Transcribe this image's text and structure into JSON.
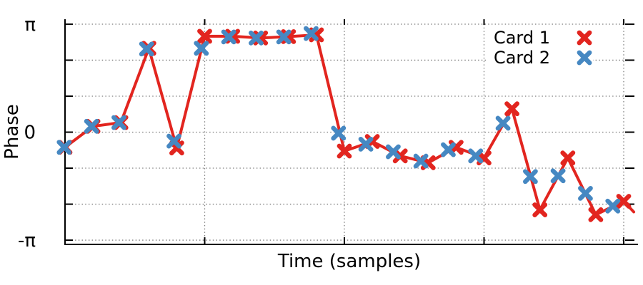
{
  "figure": {
    "background": "#ffffff",
    "text_color": "#000000",
    "border_color": "#000000"
  },
  "chart_data": {
    "type": "line",
    "title": "",
    "xlabel": "Time (samples)",
    "ylabel": "Phase",
    "x_axis": {
      "range": [
        0,
        20.4
      ],
      "ticks": [
        0,
        5,
        10,
        15,
        20
      ],
      "tick_labels_visible": false
    },
    "y_axis": {
      "range": [
        -3.25,
        3.25
      ],
      "major_ticks": [
        {
          "value": 3.14159,
          "label": "π"
        },
        {
          "value": 0,
          "label": "0"
        },
        {
          "value": -3.14159,
          "label": "-π"
        }
      ],
      "minor_ticks": [
        2.0944,
        1.0472,
        -1.0472,
        -2.0944
      ]
    },
    "grid": {
      "visible": true,
      "style": "dotted",
      "color": "#7f7f7f"
    },
    "legend": {
      "position": "inside top right",
      "box": false
    },
    "series": [
      {
        "name": "Card 1",
        "color": "#e2251f",
        "style": "line+markers",
        "marker": "X",
        "x": [
          0,
          1,
          2,
          3,
          4,
          5,
          6,
          7,
          8,
          9,
          10,
          11,
          12,
          13,
          14,
          15,
          16,
          17,
          18,
          19,
          20
        ],
        "y": [
          -0.44,
          0.17,
          0.28,
          2.44,
          -0.46,
          2.79,
          2.79,
          2.74,
          2.78,
          2.83,
          -0.55,
          -0.27,
          -0.69,
          -0.89,
          -0.44,
          -0.75,
          0.68,
          -2.26,
          -0.75,
          -2.4,
          -2.01
        ],
        "clipped_tail": {
          "x": 20.36,
          "y": -2.32
        }
      },
      {
        "name": "Card 2",
        "color": "#4688c2",
        "style": "markers",
        "marker": "X",
        "x": [
          -0.03,
          0.95,
          1.93,
          2.92,
          3.9,
          4.88,
          5.86,
          6.84,
          7.83,
          8.81,
          9.79,
          10.77,
          11.75,
          12.74,
          13.72,
          14.7,
          15.68,
          16.66,
          17.65,
          18.63,
          19.61
        ],
        "y": [
          -0.44,
          0.17,
          0.28,
          2.42,
          -0.26,
          2.44,
          2.77,
          2.74,
          2.77,
          2.87,
          -0.03,
          -0.35,
          -0.57,
          -0.84,
          -0.51,
          -0.69,
          0.26,
          -1.29,
          -1.27,
          -1.78,
          -2.15
        ]
      }
    ]
  }
}
